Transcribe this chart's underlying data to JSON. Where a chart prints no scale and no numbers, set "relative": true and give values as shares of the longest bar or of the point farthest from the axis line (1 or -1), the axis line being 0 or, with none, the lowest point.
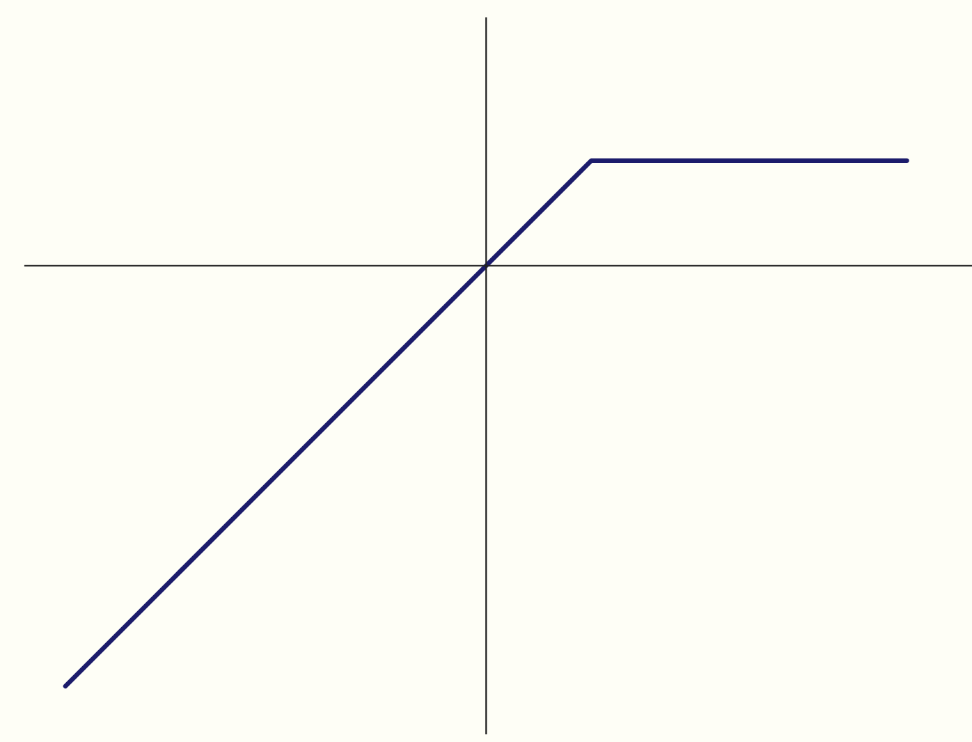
{
  "chart_data": {
    "type": "line",
    "relative": true,
    "categories": [
      null,
      null,
      null,
      null,
      null,
      null,
      null,
      null,
      null
    ],
    "series": [
      {
        "color": "#1c1c6b",
        "values": [
          -1,
          -0.75,
          -0.5,
          -0.25,
          0,
          0.25,
          0.25,
          0.25,
          0.25
        ]
      }
    ],
    "marker": "none",
    "line_style": "solid"
  }
}
